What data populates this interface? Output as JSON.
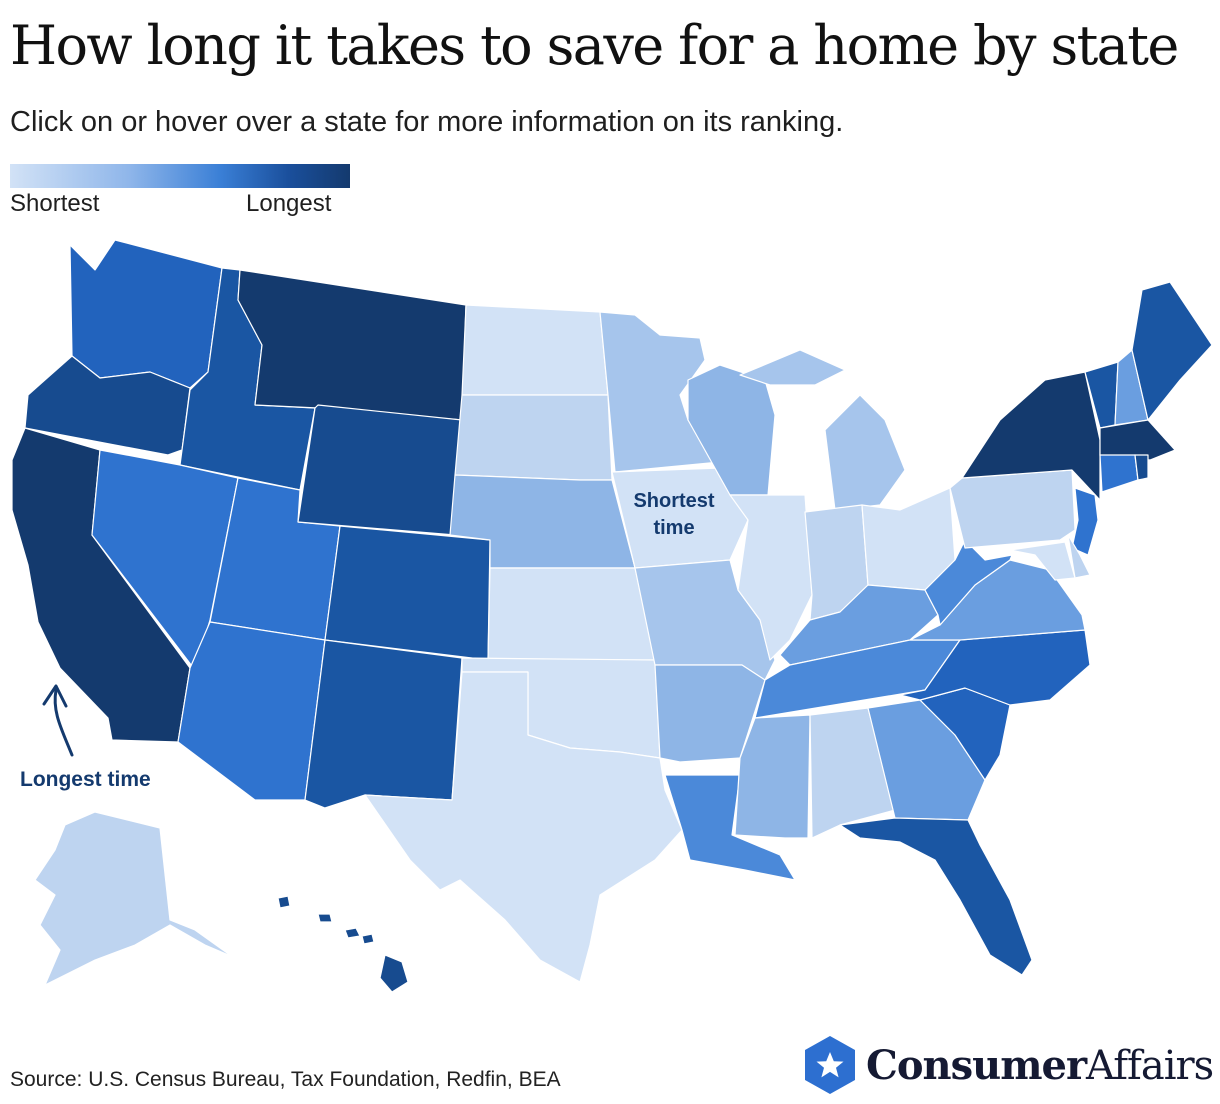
{
  "header": {
    "title": "How long it takes to save for a home by state",
    "subtitle": "Click on or hover over a state for more information on its ranking."
  },
  "legend": {
    "low_label": "Shortest",
    "high_label": "Longest",
    "gradient": [
      "#d2e2f6",
      "#8fb6ea",
      "#3a7fd6",
      "#1a4f9c",
      "#143a6e"
    ]
  },
  "annotations": {
    "shortest_line1": "Shortest",
    "shortest_line2": "time",
    "longest": "Longest time",
    "arrow_icon": "arrow-up-icon"
  },
  "scale": {
    "c0": "#d2e2f6",
    "c1": "#bed4f0",
    "c2": "#a6c5ec",
    "c3": "#8eb5e6",
    "c4": "#6a9ee0",
    "c5": "#4b89d9",
    "c6": "#2f73cf",
    "c7": "#2263bd",
    "c8": "#1a56a3",
    "c9": "#174b8f",
    "c10": "#143a6e"
  },
  "states": {
    "WA": "c7",
    "OR": "c9",
    "CA": "c10",
    "ID": "c8",
    "NV": "c6",
    "UT": "c6",
    "AZ": "c6",
    "MT": "c10",
    "WY": "c9",
    "CO": "c8",
    "NM": "c8",
    "ND": "c0",
    "SD": "c1",
    "NE": "c3",
    "KS": "c0",
    "OK": "c0",
    "TX": "c0",
    "MN": "c2",
    "IA": "c0",
    "MO": "c2",
    "AR": "c3",
    "LA": "c5",
    "WI": "c3",
    "IL": "c0",
    "MI": "c2",
    "IN": "c1",
    "OH": "c0",
    "KY": "c4",
    "TN": "c5",
    "MS": "c3",
    "AL": "c1",
    "GA": "c4",
    "FL": "c8",
    "SC": "c7",
    "NC": "c7",
    "VA": "c4",
    "WV": "c5",
    "PA": "c1",
    "NY": "c10",
    "VT": "c8",
    "NH": "c4",
    "ME": "c8",
    "MA": "c10",
    "CT": "c6",
    "RI": "c9",
    "NJ": "c6",
    "DE": "c1",
    "MD": "c0",
    "AK": "c1",
    "HI": "c9"
  },
  "footer": {
    "source": "Source: U.S. Census Bureau, Tax Foundation, Redfin, BEA",
    "brand_part1": "Consumer",
    "brand_part2": "Affairs",
    "brand_icon": "star-hexagon-icon"
  }
}
